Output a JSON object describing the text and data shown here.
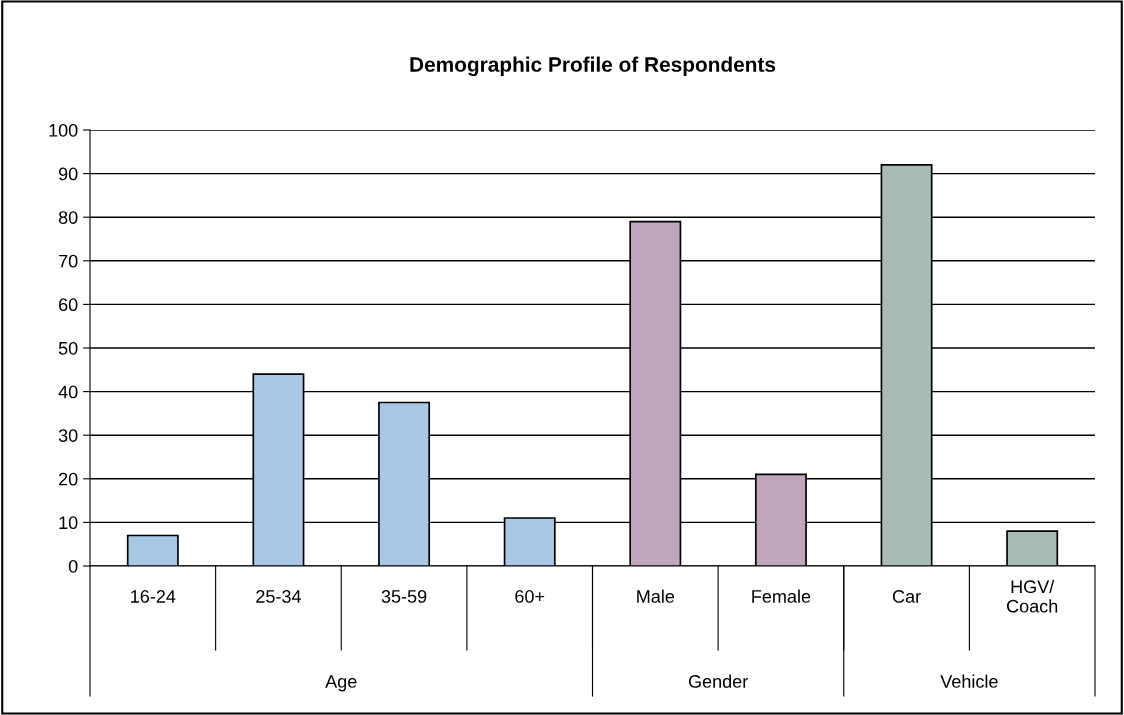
{
  "chart_data": {
    "type": "bar",
    "title": "Demographic Profile of Respondents",
    "categories": [
      "16-24",
      "25-34",
      "35-59",
      "60+",
      "Male",
      "Female",
      "Car",
      "HGV/\nCoach"
    ],
    "series": [
      {
        "color": "#a9c8e6",
        "values": [
          7,
          44,
          37.5,
          11,
          null,
          null,
          null,
          null
        ]
      },
      {
        "color": "#bfa6bd",
        "values": [
          null,
          null,
          null,
          null,
          79,
          21,
          null,
          null
        ]
      },
      {
        "color": "#a9bcb4",
        "values": [
          null,
          null,
          null,
          null,
          null,
          null,
          92,
          8
        ]
      }
    ],
    "ylim": [
      0,
      100
    ],
    "yticks": [
      0,
      10,
      20,
      30,
      40,
      50,
      60,
      70,
      80,
      90,
      100
    ],
    "grid": "y",
    "annotations": [
      "Age",
      "Gender",
      "Vehicle"
    ]
  }
}
